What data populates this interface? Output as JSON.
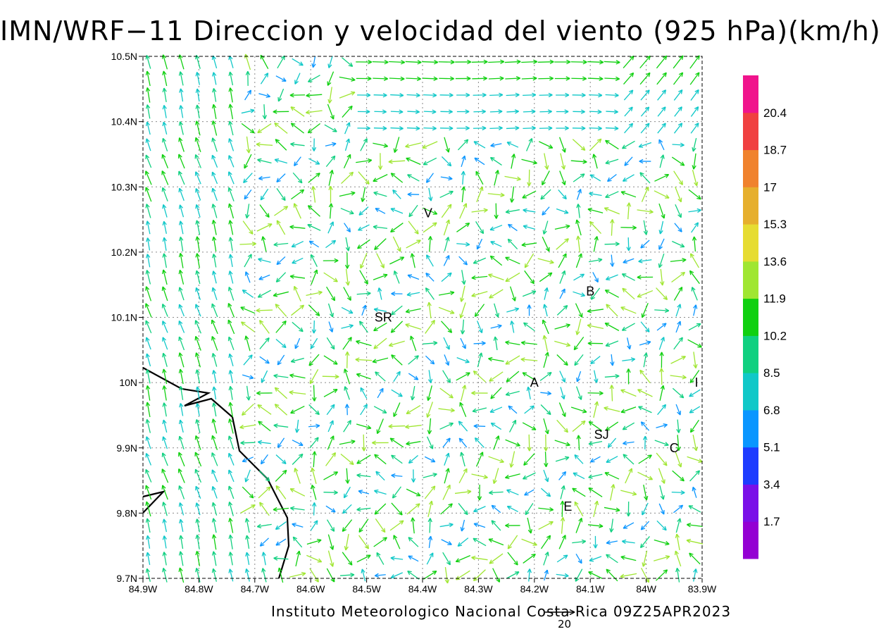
{
  "title": "IMN/WRF−11 Direccion y velocidad del viento (925 hPa)(km/h)",
  "footer": "Instituto Meteorologico Nacional Costa Rica 09Z25APR2023",
  "reference_vector_label": "20",
  "map": {
    "lon_range": [
      -84.9,
      -83.9
    ],
    "lat_range": [
      9.7,
      10.5
    ],
    "x_ticks": [
      "84.9W",
      "84.8W",
      "84.7W",
      "84.6W",
      "84.5W",
      "84.4W",
      "84.3W",
      "84.2W",
      "84.1W",
      "84W",
      "83.9W"
    ],
    "y_ticks": [
      "9.7N",
      "9.8N",
      "9.9N",
      "10N",
      "10.1N",
      "10.2N",
      "10.3N",
      "10.4N",
      "10.5N"
    ],
    "grid": true,
    "stations": [
      {
        "code": "V",
        "lon": -84.39,
        "lat": 10.26
      },
      {
        "code": "SR",
        "lon": -84.47,
        "lat": 10.1
      },
      {
        "code": "B",
        "lon": -84.1,
        "lat": 10.14
      },
      {
        "code": "A",
        "lon": -84.2,
        "lat": 10.0
      },
      {
        "code": "I",
        "lon": -83.91,
        "lat": 10.0
      },
      {
        "code": "SJ",
        "lon": -84.08,
        "lat": 9.92
      },
      {
        "code": "C",
        "lon": -83.95,
        "lat": 9.9
      },
      {
        "code": "E",
        "lon": -84.14,
        "lat": 9.81
      }
    ]
  },
  "colorbar": {
    "labels": [
      "1.7",
      "3.4",
      "5.1",
      "6.8",
      "8.5",
      "10.2",
      "11.9",
      "13.6",
      "15.3",
      "17",
      "18.7",
      "20.4"
    ],
    "colors": [
      "#9400d3",
      "#7a10e8",
      "#1e3cff",
      "#0a96ff",
      "#10c8c8",
      "#10d080",
      "#10d010",
      "#a0e632",
      "#e6dc32",
      "#e6af2d",
      "#f0822d",
      "#f04040",
      "#f0148c"
    ]
  }
}
